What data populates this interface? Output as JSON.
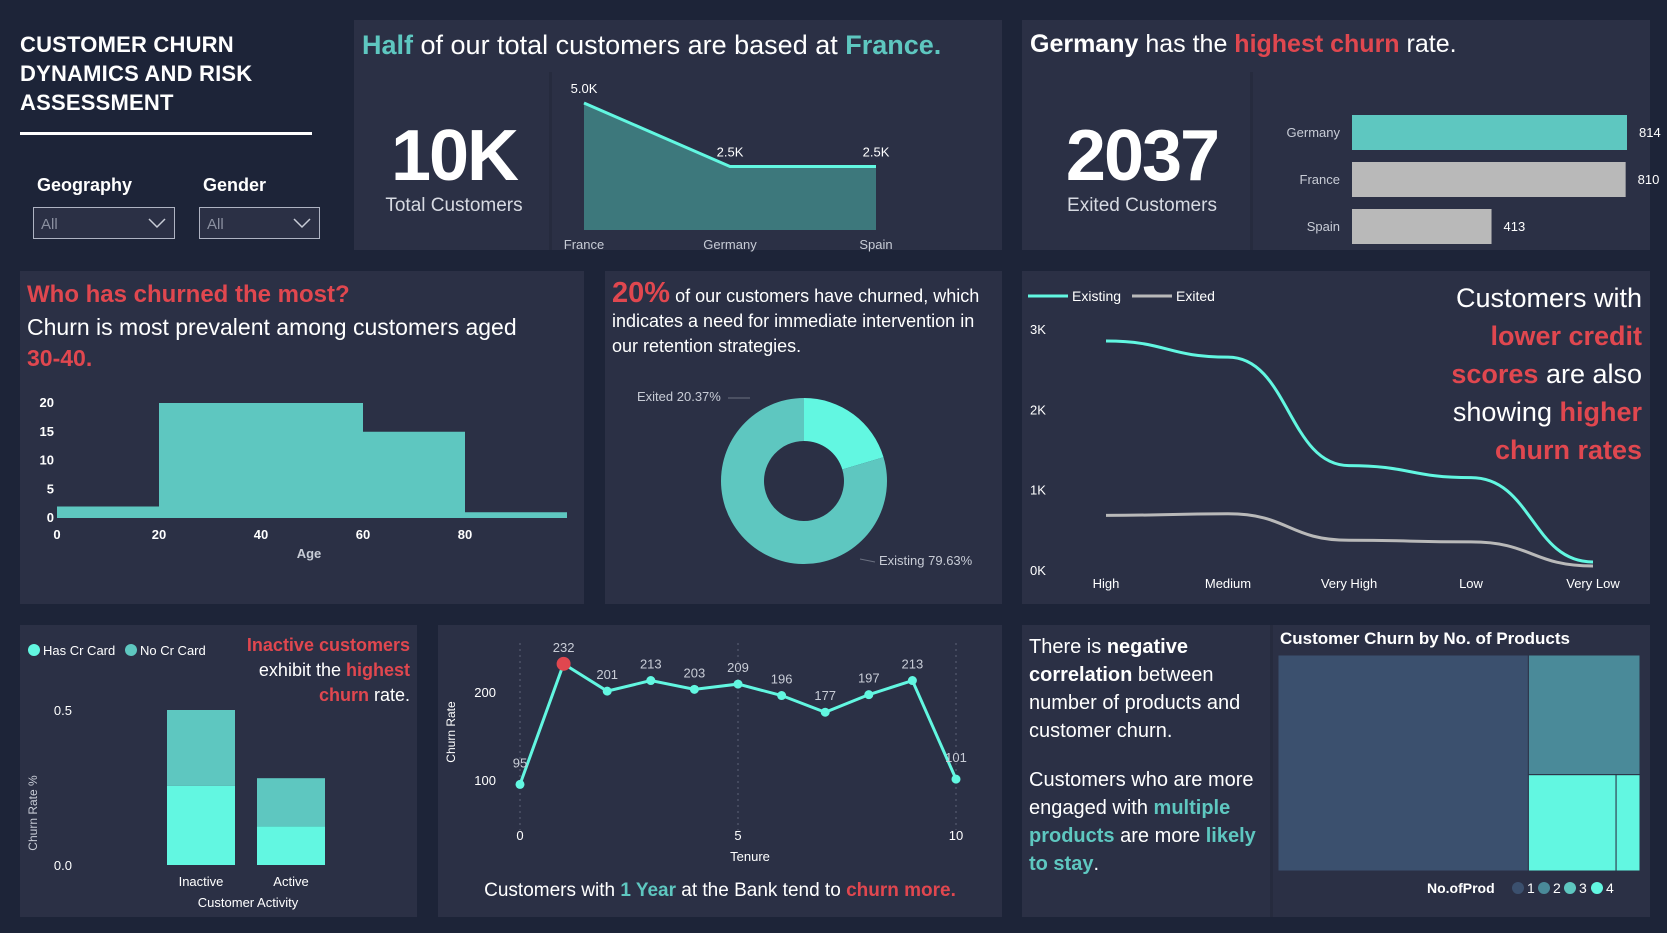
{
  "title": "CUSTOMER CHURN DYNAMICS AND RISK ASSESSMENT",
  "slicers": [
    {
      "label": "Geography",
      "value": "All"
    },
    {
      "label": "Gender",
      "value": "All"
    }
  ],
  "panel_customers": {
    "headline_parts": [
      "Half",
      " of our total customers are based at ",
      "France."
    ],
    "kpi_value": "10K",
    "kpi_label": "Total Customers"
  },
  "panel_exited": {
    "headline_parts": [
      "Germany",
      " has the ",
      "highest churn",
      " rate."
    ],
    "kpi_value": "2037",
    "kpi_label": "Exited Customers"
  },
  "panel_age": {
    "headline": "Who has churned the most?",
    "subtext": "Churn is most prevalent among customers aged",
    "highlight": "30-40."
  },
  "panel_donut": {
    "pct": "20%",
    "text": "of our customers have churned, which indicates a need for immediate intervention in our retention strategies."
  },
  "panel_credit": {
    "text_parts": [
      "Customers with",
      "lower credit",
      "scores",
      " are also",
      "showing ",
      "higher",
      "churn rates"
    ]
  },
  "panel_activity": {
    "text_parts": [
      "Inactive customers",
      "exhibit the ",
      "highest",
      "churn",
      " rate."
    ]
  },
  "panel_tenure": {
    "caption_parts": [
      "Customers with ",
      "1 Year",
      " at the Bank tend to ",
      "churn more."
    ]
  },
  "panel_products": {
    "para1_parts": [
      "There is ",
      "negative correlation",
      " between number of products and customer churn."
    ],
    "para2_parts": [
      "Customers who are more engaged with ",
      "multiple products",
      " are more ",
      "likely to stay",
      "."
    ],
    "treemap_title": "Customer Churn by No. of Products"
  },
  "colors": {
    "background": "#1d2438",
    "panel": "#2b3045",
    "teal": "#5ec7c0",
    "aqua": "#62f7e1",
    "red": "#e0474f",
    "gray": "#b9b9b9"
  },
  "chart_data": [
    {
      "id": "geo_area",
      "type": "area",
      "categories": [
        "France",
        "Germany",
        "Spain"
      ],
      "values": [
        5.0,
        2.5,
        2.5
      ],
      "data_labels": [
        "5.0K",
        "2.5K",
        "2.5K"
      ],
      "unit": "K customers"
    },
    {
      "id": "geo_churn_bar",
      "type": "bar",
      "orientation": "horizontal",
      "categories": [
        "Germany",
        "France",
        "Spain"
      ],
      "values": [
        814,
        810,
        413
      ],
      "max": 814,
      "bar_colors": [
        "#5ec7c0",
        "#b9b9b9",
        "#b9b9b9"
      ]
    },
    {
      "id": "age_hist",
      "type": "area",
      "xlabel": "Age",
      "xticks": [
        0,
        20,
        40,
        60,
        80
      ],
      "yticks": [
        0,
        5,
        10,
        15,
        20
      ],
      "xlim": [
        0,
        100
      ],
      "ylim": [
        0,
        20
      ],
      "bins": [
        {
          "x0": 0,
          "x1": 20,
          "y": 2
        },
        {
          "x0": 20,
          "x1": 60,
          "y": 20
        },
        {
          "x0": 60,
          "x1": 80,
          "y": 15
        },
        {
          "x0": 80,
          "x1": 100,
          "y": 1
        }
      ]
    },
    {
      "id": "churn_donut",
      "type": "pie",
      "slices": [
        {
          "name": "Exited",
          "value": 20.37,
          "label": "Exited 20.37%",
          "color": "#62f7e1"
        },
        {
          "name": "Existing",
          "value": 79.63,
          "label": "Existing 79.63%",
          "color": "#5ec7c0"
        }
      ]
    },
    {
      "id": "credit_lines",
      "type": "line",
      "categories": [
        "High",
        "Medium",
        "Very High",
        "Low",
        "Very Low"
      ],
      "yticks": [
        "3K",
        "2K",
        "1K",
        "0K"
      ],
      "ylim": [
        0,
        3000
      ],
      "series": [
        {
          "name": "Existing",
          "values": [
            2850,
            2650,
            1300,
            1150,
            100
          ],
          "color": "#62f7e1"
        },
        {
          "name": "Exited",
          "values": [
            680,
            700,
            370,
            350,
            50
          ],
          "color": "#b9b9b9"
        }
      ],
      "legend": "top-left"
    },
    {
      "id": "activity_bars",
      "type": "bar",
      "stacked": true,
      "categories": [
        "Inactive",
        "Active"
      ],
      "xlabel": "Customer Activity",
      "ylabel": "Churn Rate %",
      "yticks": [
        "0.0",
        "0.5"
      ],
      "ylim": [
        0,
        0.5
      ],
      "series": [
        {
          "name": "Has Cr Card",
          "values": [
            0.255,
            0.125
          ],
          "color": "#62f7e1"
        },
        {
          "name": "No Cr Card",
          "values": [
            0.245,
            0.155
          ],
          "color": "#5ec7c0"
        }
      ]
    },
    {
      "id": "tenure_line",
      "type": "line",
      "xlabel": "Tenure",
      "ylabel": "Churn Rate",
      "x": [
        0,
        1,
        2,
        3,
        4,
        5,
        6,
        7,
        8,
        9,
        10
      ],
      "values": [
        95,
        232,
        201,
        213,
        203,
        209,
        196,
        177,
        197,
        213,
        101
      ],
      "xticks": [
        0,
        5,
        10
      ],
      "yticks": [
        100,
        200
      ],
      "ylim": [
        60,
        250
      ],
      "highlight_index": 1
    },
    {
      "id": "products_treemap",
      "type": "heatmap",
      "legend_title": "No.ofProd",
      "legend": [
        "1",
        "2",
        "3",
        "4"
      ],
      "colors": [
        "#3b506e",
        "#4a8a99",
        "#62f7e1",
        "#62f7e1"
      ],
      "cells": [
        {
          "name": "1",
          "value": 1409
        },
        {
          "name": "2",
          "value": 348
        },
        {
          "name": "3",
          "value": 220
        },
        {
          "name": "4",
          "value": 60
        }
      ]
    }
  ]
}
